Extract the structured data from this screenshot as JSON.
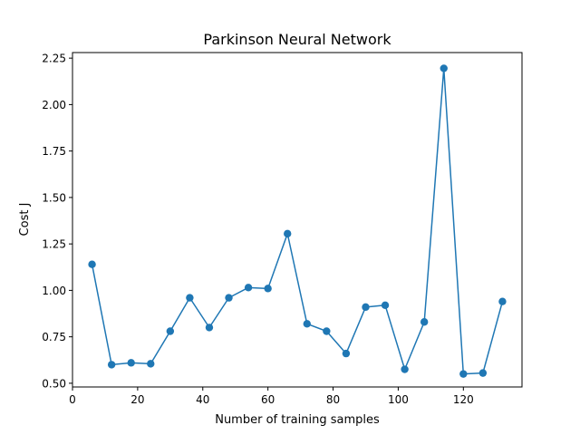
{
  "chart_data": {
    "type": "line",
    "title": "Parkinson Neural Network",
    "xlabel": "Number of training samples",
    "ylabel": "Cost J",
    "xlim": [
      0,
      138
    ],
    "ylim": [
      0.48,
      2.28
    ],
    "xticks": [
      0,
      20,
      40,
      60,
      80,
      100,
      120
    ],
    "yticks": [
      0.5,
      0.75,
      1.0,
      1.25,
      1.5,
      1.75,
      2.0,
      2.25
    ],
    "ytick_labels": [
      "0.50",
      "0.75",
      "1.00",
      "1.25",
      "1.50",
      "1.75",
      "2.00",
      "2.25"
    ],
    "grid": false,
    "series": [
      {
        "color": "#1f77b4",
        "marker": "circle",
        "x": [
          6,
          12,
          18,
          24,
          30,
          36,
          42,
          48,
          54,
          60,
          66,
          72,
          78,
          84,
          90,
          96,
          102,
          108,
          114,
          120,
          126,
          132
        ],
        "y": [
          1.14,
          0.6,
          0.61,
          0.605,
          0.78,
          0.96,
          0.8,
          0.96,
          1.015,
          1.01,
          1.305,
          0.82,
          0.78,
          0.66,
          0.91,
          0.92,
          0.575,
          0.83,
          2.195,
          0.55,
          0.555,
          0.94
        ]
      }
    ]
  }
}
